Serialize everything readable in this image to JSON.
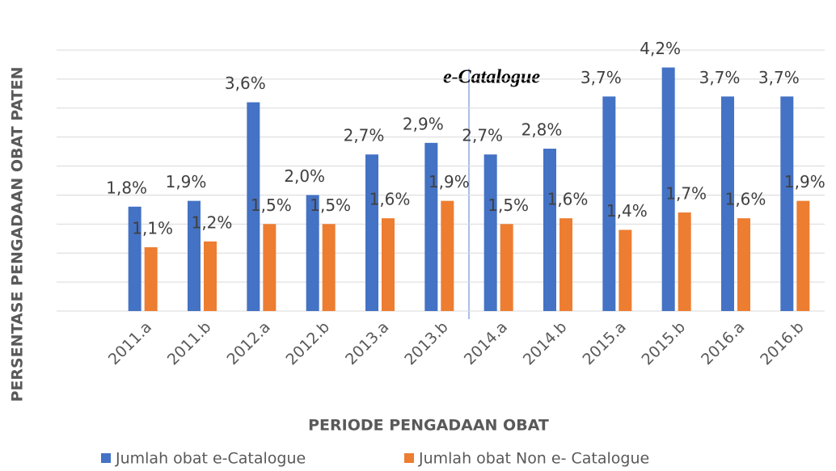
{
  "chart_data": {
    "type": "bar",
    "y_label": "PERSENTASE PENGADAAN OBAT PATEN",
    "x_label": "PERIODE PENGADAAN OBAT",
    "annotation": "e-Catalogue",
    "categories": [
      "2011.a",
      "2011.b",
      "2012.a",
      "2012.b",
      "2013.a",
      "2013.b",
      "2014.a",
      "2014.b",
      "2015.a",
      "2015.b",
      "2016.a",
      "2016.b"
    ],
    "series": [
      {
        "name": "Jumlah obat e-Catalogue",
        "color": "#4472c4",
        "values": [
          1.8,
          1.9,
          3.6,
          2.0,
          2.7,
          2.9,
          2.7,
          2.8,
          3.7,
          4.2,
          3.7,
          3.7
        ],
        "value_labels": [
          "1,8%",
          "1,9%",
          "3,6%",
          "2,0%",
          "2,7%",
          "2,9%",
          "2,7%",
          "2,8%",
          "3,7%",
          "4,2%",
          "3,7%",
          "3,7%"
        ]
      },
      {
        "name": "Jumlah obat  Non e- Catalogue",
        "color": "#ed7d31",
        "values": [
          1.1,
          1.2,
          1.5,
          1.5,
          1.6,
          1.9,
          1.5,
          1.6,
          1.4,
          1.7,
          1.6,
          1.9
        ],
        "value_labels": [
          "1,1%",
          "1,2%",
          "1,5%",
          "1,5%",
          "1,6%",
          "1,9%",
          "1,5%",
          "1,6%",
          "1,4%",
          "1,7%",
          "1,6%",
          "1,9%"
        ]
      }
    ],
    "ylim": [
      0,
      4.5
    ],
    "yticks": [
      0,
      0.5,
      1,
      1.5,
      2,
      2.5,
      3,
      3.5,
      4,
      4.5
    ],
    "grid": true
  }
}
